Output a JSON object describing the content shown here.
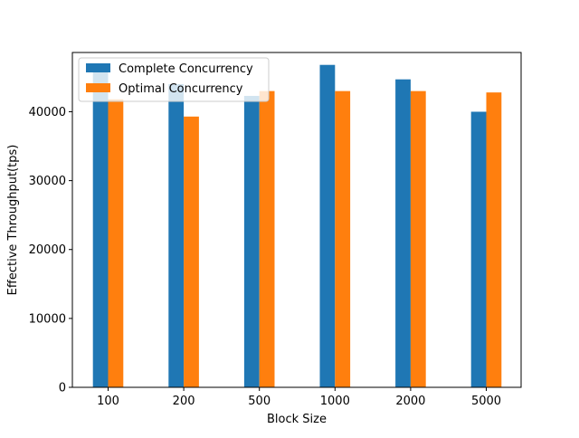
{
  "chart_data": {
    "type": "bar",
    "title": "",
    "xlabel": "Block Size",
    "ylabel": "Effective Throughput(tps)",
    "categories": [
      "100",
      "200",
      "500",
      "1000",
      "2000",
      "5000"
    ],
    "series": [
      {
        "name": "Complete Concurrency",
        "color": "#1f77b4",
        "values": [
          46300,
          44000,
          42300,
          46800,
          44700,
          40000
        ]
      },
      {
        "name": "Optimal Concurrency",
        "color": "#ff7f0e",
        "values": [
          41800,
          39300,
          43000,
          43000,
          43000,
          42800
        ]
      }
    ],
    "ylim": [
      0,
      48600
    ],
    "yticks": [
      0,
      10000,
      20000,
      30000,
      40000
    ],
    "grid": false,
    "legend_position": "top-left"
  }
}
